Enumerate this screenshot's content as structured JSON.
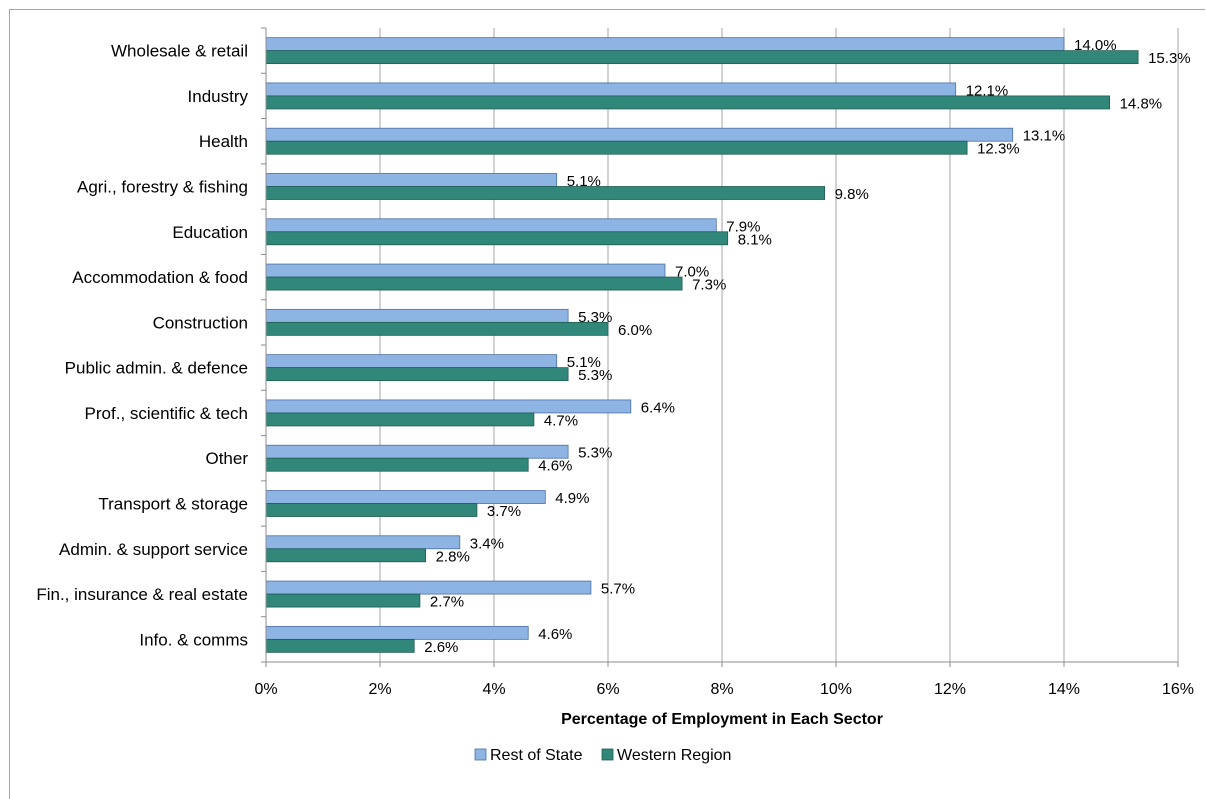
{
  "chart_data": {
    "type": "bar",
    "orientation": "horizontal",
    "categories": [
      "Wholesale & retail",
      "Industry",
      "Health",
      "Agri., forestry & fishing",
      "Education",
      "Accommodation & food",
      "Construction",
      "Public admin. & defence",
      "Prof., scientific & tech",
      "Other",
      "Transport & storage",
      "Admin. & support service",
      "Fin., insurance & real estate",
      "Info. & comms"
    ],
    "series": [
      {
        "name": "Rest of State",
        "color": "#8eb4e3",
        "border": "#4a6fa5",
        "values": [
          14.0,
          12.1,
          13.1,
          5.1,
          7.9,
          7.0,
          5.3,
          5.1,
          6.4,
          5.3,
          4.9,
          3.4,
          5.7,
          4.6
        ],
        "labels": [
          "14.0%",
          "12.1%",
          "13.1%",
          "5.1%",
          "7.9%",
          "7.0%",
          "5.3%",
          "5.1%",
          "6.4%",
          "5.3%",
          "4.9%",
          "3.4%",
          "5.7%",
          "4.6%"
        ]
      },
      {
        "name": "Western Region",
        "color": "#31887a",
        "border": "#1f5c52",
        "values": [
          15.3,
          14.8,
          12.3,
          9.8,
          8.1,
          7.3,
          6.0,
          5.3,
          4.7,
          4.6,
          3.7,
          2.8,
          2.7,
          2.6
        ],
        "labels": [
          "15.3%",
          "14.8%",
          "12.3%",
          "9.8%",
          "8.1%",
          "7.3%",
          "6.0%",
          "5.3%",
          "4.7%",
          "4.6%",
          "3.7%",
          "2.8%",
          "2.7%",
          "2.6%"
        ]
      }
    ],
    "xlim": [
      0,
      16
    ],
    "xticks": [
      "0%",
      "2%",
      "4%",
      "6%",
      "8%",
      "10%",
      "12%",
      "14%",
      "16%"
    ],
    "xlabel": "Percentage of Employment in Each Sector",
    "ylabel": "",
    "title": "",
    "grid": "vertical",
    "legend_position": "bottom"
  }
}
